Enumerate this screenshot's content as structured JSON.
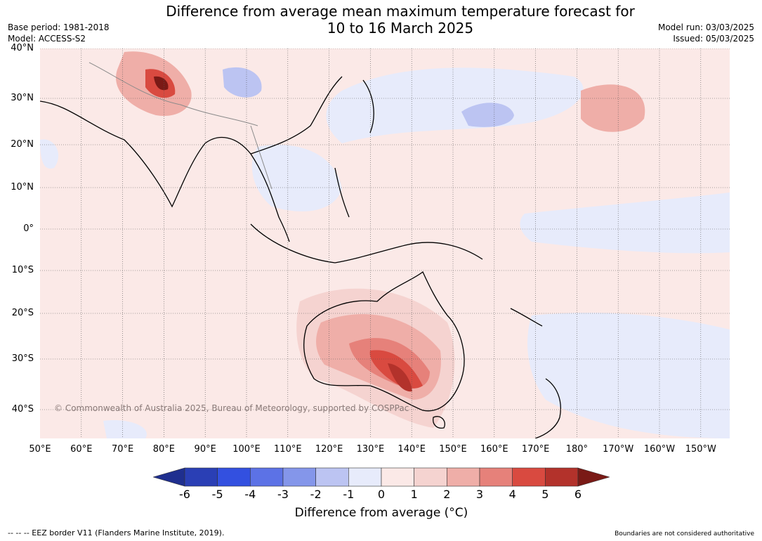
{
  "header": {
    "title_line1": "Difference from average mean maximum temperature forecast for",
    "title_line2": "10 to 16 March 2025",
    "base_period": "Base period: 1981-2018",
    "model": "Model: ACCESS-S2",
    "model_run": "Model run: 03/03/2025",
    "issued": "Issued: 05/03/2025"
  },
  "map": {
    "latitudes": [
      "40°N",
      "30°N",
      "20°N",
      "10°N",
      "0°",
      "10°S",
      "20°S",
      "30°S",
      "40°S"
    ],
    "longitudes": [
      "50°E",
      "60°E",
      "70°E",
      "80°E",
      "90°E",
      "100°E",
      "110°E",
      "120°E",
      "130°E",
      "140°E",
      "150°E",
      "160°E",
      "170°E",
      "180°",
      "170°W",
      "160°W",
      "150°W"
    ],
    "copyright": "© Commonwealth of Australia 2025, Bureau of Meteorology, supported by COSPPac"
  },
  "colorbar": {
    "ticks": [
      "-6",
      "-5",
      "-4",
      "-3",
      "-2",
      "-1",
      "0",
      "1",
      "2",
      "3",
      "4",
      "5",
      "6"
    ],
    "colors": [
      "#1f2f8f",
      "#2a3fb5",
      "#3350e0",
      "#5c72e6",
      "#8496ea",
      "#bcc4f2",
      "#e7ebfb",
      "#fbe9e7",
      "#f5d3d0",
      "#efaea8",
      "#e6817a",
      "#d94a40",
      "#b3322b",
      "#7a1a16"
    ],
    "label": "Difference from average (°C)"
  },
  "footer": {
    "eez": "--  --  -- EEZ border V11 (Flanders Marine Institute, 2019).",
    "disclaimer": "Boundaries are not considered authoritative"
  }
}
